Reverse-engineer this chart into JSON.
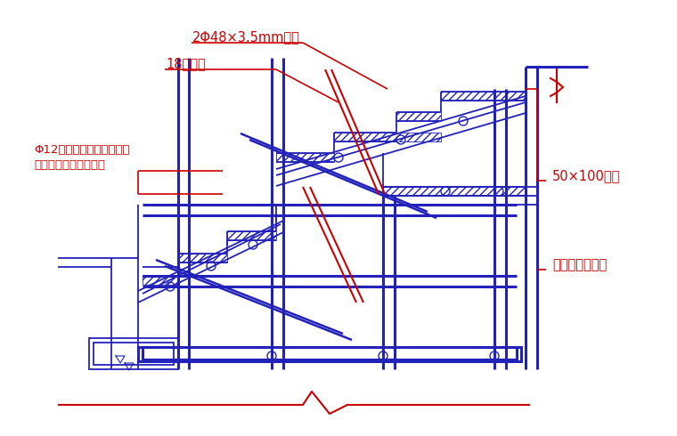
{
  "bg_color": "#ffffff",
  "blue": "#2222bb",
  "red": "#cc0000",
  "lw": 1.3,
  "tlw": 2.2,
  "labels": {
    "pipe": "2Φ48×3.5mm钓管",
    "board": "18厚层板",
    "bolt": "Φ12对拉螺杆，间隔一步设\n置一道，横向设置两遗",
    "wood": "50×100木枹",
    "scaffold": "钓管脚手架支撑"
  }
}
